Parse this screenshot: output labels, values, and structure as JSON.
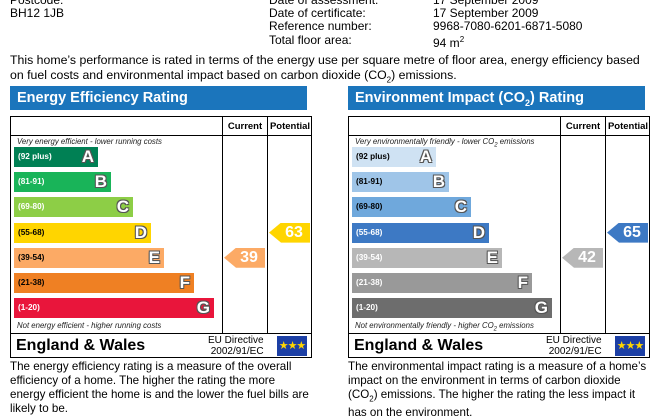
{
  "header": {
    "postcode_label": "Postcode:",
    "postcode": "BH12 1JB",
    "date_of_assessment_label": "Date of assessment:",
    "date_of_assessment": "17 September 2009",
    "date_of_certificate_label": "Date of certificate:",
    "date_of_certificate": "17 September 2009",
    "reference_number_label": "Reference number:",
    "reference_number": "9968-7080-6201-6871-5080",
    "total_floor_area_label": "Total floor area:",
    "total_floor_area_value": "94 m",
    "total_floor_area_sup": "2"
  },
  "intro": {
    "part1": "This home’s performance is rated in terms of the energy use per square metre of floor area, energy efficiency based on fuel costs and environmental impact based on carbon dioxide (CO",
    "sub": "2",
    "part2": ") emissions."
  },
  "energy": {
    "title": "Energy Efficiency Rating",
    "col_current": "Current",
    "col_potential": "Potential",
    "top_note": "Very energy efficient - lower running costs",
    "bottom_note": "Not energy efficient - higher running costs",
    "bands": [
      {
        "range": "(92 plus)",
        "letter": "A",
        "color": "#008054"
      },
      {
        "range": "(81-91)",
        "letter": "B",
        "color": "#19b459"
      },
      {
        "range": "(69-80)",
        "letter": "C",
        "color": "#8dce46"
      },
      {
        "range": "(55-68)",
        "letter": "D",
        "color": "#ffd500"
      },
      {
        "range": "(39-54)",
        "letter": "E",
        "color": "#fcaa65"
      },
      {
        "range": "(21-38)",
        "letter": "F",
        "color": "#ef8023"
      },
      {
        "range": "(1-20)",
        "letter": "G",
        "color": "#e9153b"
      }
    ],
    "current": {
      "value": "39",
      "band": "E",
      "color": "#fcaa65"
    },
    "potential": {
      "value": "63",
      "band": "D",
      "color": "#ffd500"
    },
    "country": "England & Wales",
    "directive_line1": "EU Directive",
    "directive_line2": "2002/91/EC",
    "description": "The energy efficiency rating is a measure of the overall efficiency of a home. The higher the rating the more energy efficient the home is and the lower the fuel bills are likely to be."
  },
  "environment": {
    "title_part1": "Environment Impact (CO",
    "title_sub": "2",
    "title_part2": ") Rating",
    "col_current": "Current",
    "col_potential": "Potential",
    "top_note_part1": "Very environmentally friendly - lower CO",
    "top_note_sub": "2",
    "top_note_part2": " emissions",
    "bottom_note_part1": "Not environmentally friendly - higher CO",
    "bottom_note_sub": "2",
    "bottom_note_part2": " emissions",
    "bands": [
      {
        "range": "(92 plus)",
        "letter": "A",
        "color": "#cfe2f3"
      },
      {
        "range": "(81-91)",
        "letter": "B",
        "color": "#9fc5e8"
      },
      {
        "range": "(69-80)",
        "letter": "C",
        "color": "#6fa8dc"
      },
      {
        "range": "(55-68)",
        "letter": "D",
        "color": "#3d79c4"
      },
      {
        "range": "(39-54)",
        "letter": "E",
        "color": "#b7b7b7"
      },
      {
        "range": "(21-38)",
        "letter": "F",
        "color": "#999999"
      },
      {
        "range": "(1-20)",
        "letter": "G",
        "color": "#6d6d6d"
      }
    ],
    "current": {
      "value": "42",
      "band": "E",
      "color": "#b7b7b7"
    },
    "potential": {
      "value": "65",
      "band": "D",
      "color": "#3d79c4"
    },
    "country": "England & Wales",
    "directive_line1": "EU Directive",
    "directive_line2": "2002/91/EC",
    "desc_part1": "The environmental impact rating is a measure of a home’s impact on the environment in terms of carbon dioxide (CO",
    "desc_sub": "2",
    "desc_part2": ") emissions. The higher the rating the less impact it has on the environment."
  }
}
